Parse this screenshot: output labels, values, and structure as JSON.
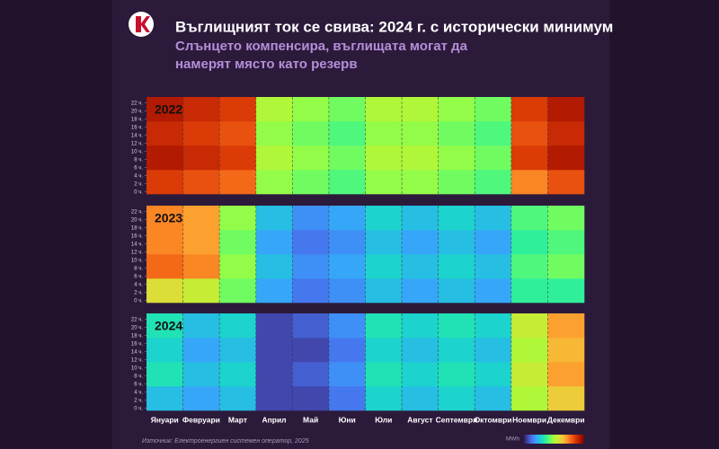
{
  "chart_data": {
    "type": "heatmap",
    "title": "Въглищният ток се свива: 2024 г. с исторически минимум",
    "subtitle": [
      "Слънцето компенсира, въглищата могат да",
      "намерят място като резерв"
    ],
    "source": "Източник: Електроенергиен системен оператор, 2025",
    "colorbar_label": "MWh",
    "categories": [
      "Януари",
      "Февруари",
      "Март",
      "Април",
      "Май",
      "Юни",
      "Юли",
      "Август",
      "Септември",
      "Октомври",
      "Ноември",
      "Декември"
    ],
    "ylim": [
      0,
      24
    ],
    "yticks": [
      {
        "value": 0,
        "label": "0 ч."
      },
      {
        "value": 2,
        "label": "2 ч."
      },
      {
        "value": 4,
        "label": "4 ч."
      },
      {
        "value": 6,
        "label": "6 ч."
      },
      {
        "value": 8,
        "label": "8 ч."
      },
      {
        "value": 10,
        "label": "10 ч."
      },
      {
        "value": 12,
        "label": "12 ч."
      },
      {
        "value": 14,
        "label": "14 ч."
      },
      {
        "value": 16,
        "label": "16 ч."
      },
      {
        "value": 18,
        "label": "18 ч."
      },
      {
        "value": 20,
        "label": "20 ч."
      },
      {
        "value": 22,
        "label": "22 ч."
      }
    ],
    "hour_bands": [
      0,
      6,
      12,
      18,
      24
    ],
    "zlim": [
      300,
      3000
    ],
    "colorscale": [
      "#30123b",
      "#4145ab",
      "#4675ed",
      "#39a2fc",
      "#1bcfd4",
      "#24eca6",
      "#61fc6c",
      "#a4fc3b",
      "#d1e834",
      "#f3c63a",
      "#fe9b2d",
      "#f36315",
      "#d93806",
      "#b11901",
      "#7a0403"
    ],
    "series": [
      {
        "name": "2022",
        "values": [
          [
            2600,
            2800,
            2700,
            2800
          ],
          [
            2500,
            2700,
            2600,
            2700
          ],
          [
            2400,
            2600,
            2500,
            2600
          ],
          [
            1600,
            1700,
            1600,
            1700
          ],
          [
            1500,
            1600,
            1500,
            1600
          ],
          [
            1400,
            1500,
            1400,
            1500
          ],
          [
            1600,
            1700,
            1600,
            1700
          ],
          [
            1600,
            1700,
            1600,
            1700
          ],
          [
            1500,
            1600,
            1500,
            1600
          ],
          [
            1400,
            1500,
            1400,
            1500
          ],
          [
            2300,
            2600,
            2500,
            2600
          ],
          [
            2500,
            2800,
            2700,
            2800
          ]
        ]
      },
      {
        "name": "2023",
        "values": [
          [
            1900,
            2400,
            2300,
            2300
          ],
          [
            1800,
            2300,
            2200,
            2200
          ],
          [
            1500,
            1600,
            1500,
            1600
          ],
          [
            900,
            1000,
            900,
            1000
          ],
          [
            700,
            800,
            700,
            800
          ],
          [
            800,
            900,
            800,
            900
          ],
          [
            1000,
            1100,
            1000,
            1100
          ],
          [
            900,
            1000,
            900,
            1000
          ],
          [
            1000,
            1100,
            1000,
            1100
          ],
          [
            900,
            1000,
            900,
            1000
          ],
          [
            1300,
            1400,
            1300,
            1400
          ],
          [
            1300,
            1500,
            1400,
            1500
          ]
        ]
      },
      {
        "name": "2024",
        "values": [
          [
            1000,
            1200,
            1100,
            1200
          ],
          [
            900,
            1000,
            900,
            1000
          ],
          [
            1000,
            1100,
            1000,
            1100
          ],
          [
            500,
            500,
            500,
            500
          ],
          [
            500,
            600,
            500,
            600
          ],
          [
            700,
            800,
            700,
            800
          ],
          [
            1100,
            1200,
            1100,
            1200
          ],
          [
            1000,
            1100,
            1000,
            1100
          ],
          [
            1100,
            1200,
            1100,
            1200
          ],
          [
            1000,
            1100,
            1000,
            1100
          ],
          [
            1700,
            1800,
            1700,
            1800
          ],
          [
            2000,
            2200,
            2100,
            2200
          ]
        ]
      }
    ]
  }
}
